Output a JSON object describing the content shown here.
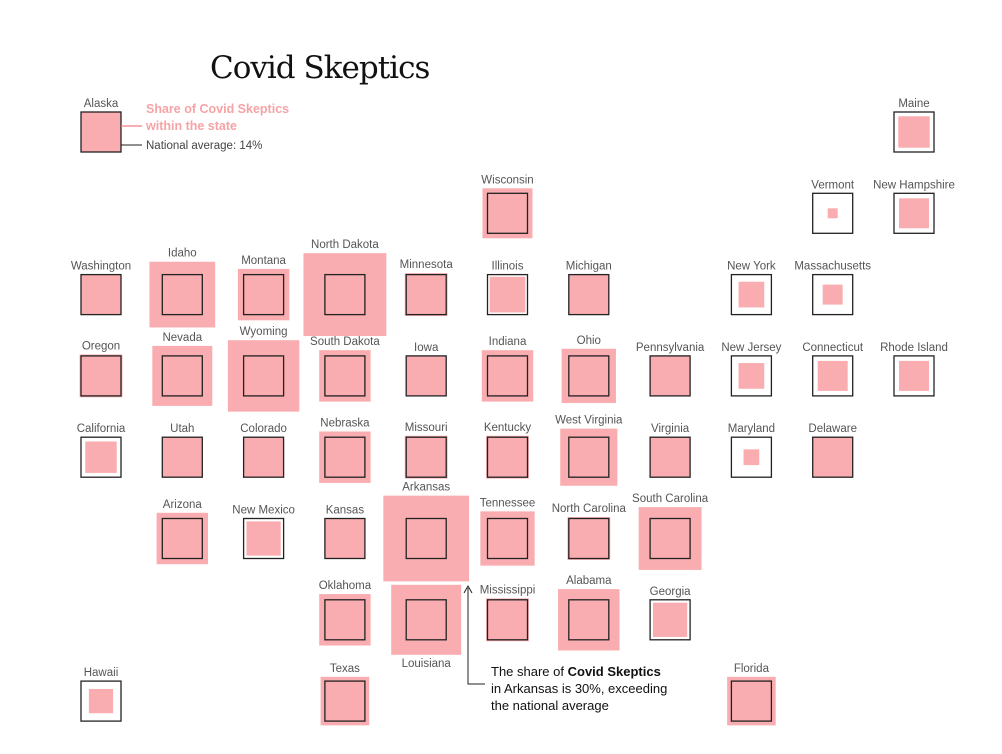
{
  "chart_data": {
    "type": "tile-map",
    "title": "Covid Skeptics",
    "unit": "%",
    "national_average": 14,
    "legend": {
      "fill_label_line1": "Share of Covid Skeptics",
      "fill_label_line2": "within the state",
      "outline_label": "National average: 14%"
    },
    "annotation": {
      "prefix": "The share of ",
      "bold": "Covid Skeptics",
      "line2": "in Arkansas is 30%, exceeding",
      "line3": "the national average"
    },
    "colors": {
      "fill": "#f9adb0",
      "outline": "#222222",
      "legend_accent": "#f7a3a6"
    },
    "states": [
      {
        "name": "Alaska",
        "value": 14
      },
      {
        "name": "Maine",
        "value": 11
      },
      {
        "name": "Wisconsin",
        "value": 17.5
      },
      {
        "name": "Vermont",
        "value": 3.5
      },
      {
        "name": "New Hampshire",
        "value": 10.5
      },
      {
        "name": "Washington",
        "value": 14
      },
      {
        "name": "Idaho",
        "value": 23
      },
      {
        "name": "Montana",
        "value": 18
      },
      {
        "name": "North Dakota",
        "value": 29
      },
      {
        "name": "Minnesota",
        "value": 15
      },
      {
        "name": "Illinois",
        "value": 12.5
      },
      {
        "name": "Michigan",
        "value": 14
      },
      {
        "name": "New York",
        "value": 9
      },
      {
        "name": "Massachusetts",
        "value": 7
      },
      {
        "name": "Oregon",
        "value": 15
      },
      {
        "name": "Nevada",
        "value": 21
      },
      {
        "name": "Wyoming",
        "value": 25
      },
      {
        "name": "South Dakota",
        "value": 18
      },
      {
        "name": "Iowa",
        "value": 14
      },
      {
        "name": "Indiana",
        "value": 18
      },
      {
        "name": "Ohio",
        "value": 19
      },
      {
        "name": "Pennsylvania",
        "value": 14
      },
      {
        "name": "New Jersey",
        "value": 9
      },
      {
        "name": "Connecticut",
        "value": 10.5
      },
      {
        "name": "Rhode Island",
        "value": 10.5
      },
      {
        "name": "California",
        "value": 11
      },
      {
        "name": "Utah",
        "value": 14
      },
      {
        "name": "Colorado",
        "value": 14
      },
      {
        "name": "Nebraska",
        "value": 18
      },
      {
        "name": "Missouri",
        "value": 15
      },
      {
        "name": "Kentucky",
        "value": 15
      },
      {
        "name": "West Virginia",
        "value": 20
      },
      {
        "name": "Virginia",
        "value": 14
      },
      {
        "name": "Maryland",
        "value": 5.5
      },
      {
        "name": "Delaware",
        "value": 14
      },
      {
        "name": "Arizona",
        "value": 18
      },
      {
        "name": "New Mexico",
        "value": 12
      },
      {
        "name": "Kansas",
        "value": 14
      },
      {
        "name": "Arkansas",
        "value": 30
      },
      {
        "name": "Tennessee",
        "value": 19
      },
      {
        "name": "North Carolina",
        "value": 15
      },
      {
        "name": "South Carolina",
        "value": 22
      },
      {
        "name": "Oklahoma",
        "value": 18
      },
      {
        "name": "Louisiana",
        "value": 24.5
      },
      {
        "name": "Mississippi",
        "value": 15
      },
      {
        "name": "Alabama",
        "value": 21.5
      },
      {
        "name": "Georgia",
        "value": 12
      },
      {
        "name": "Hawaii",
        "value": 8.5
      },
      {
        "name": "Texas",
        "value": 17
      },
      {
        "name": "Florida",
        "value": 17
      }
    ]
  }
}
